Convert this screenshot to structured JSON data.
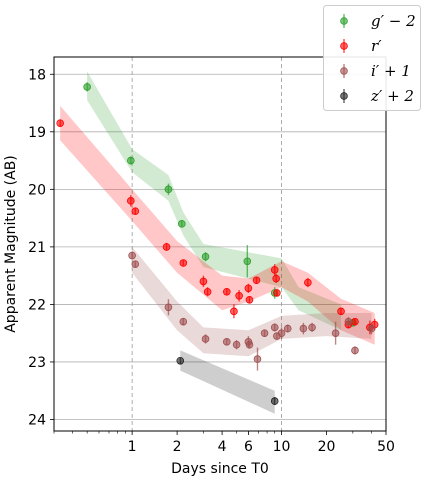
{
  "chart_data": {
    "type": "scatter",
    "title": "",
    "xlabel": "Days since T0",
    "ylabel": "Apparent Magnitude (AB)",
    "xscale": "log",
    "xlim": [
      0.3,
      50
    ],
    "ylim": [
      24.2,
      17.7
    ],
    "y_inverted": true,
    "x_ticks": [
      1,
      2,
      4,
      6,
      10,
      20,
      50
    ],
    "x_tick_labels": [
      "1",
      "2",
      "4",
      "6",
      "10",
      "20",
      "50"
    ],
    "y_ticks": [
      18,
      19,
      20,
      21,
      22,
      23,
      24
    ],
    "y_tick_labels": [
      "18",
      "19",
      "20",
      "21",
      "22",
      "23",
      "24"
    ],
    "vlines": [
      1,
      10
    ],
    "grid": "horizontal",
    "legend_position": "top-right, outside",
    "series": [
      {
        "name": "g′ − 2",
        "color": "#2ca02c",
        "points": [
          {
            "x": 0.5,
            "y": 18.22,
            "err": 0.08
          },
          {
            "x": 0.98,
            "y": 19.5,
            "err": 0.07
          },
          {
            "x": 1.75,
            "y": 20.0,
            "err": 0.1
          },
          {
            "x": 2.15,
            "y": 20.6,
            "err": 0.05
          },
          {
            "x": 3.1,
            "y": 21.17,
            "err": 0.08
          },
          {
            "x": 5.9,
            "y": 21.25,
            "err": 0.28
          },
          {
            "x": 9.0,
            "y": 21.8,
            "err": 0.1
          },
          {
            "x": 30.0,
            "y": 22.32,
            "err": 0.06
          }
        ],
        "band": [
          {
            "x": 0.5,
            "lo": 17.95,
            "hi": 18.45
          },
          {
            "x": 1.0,
            "lo": 19.3,
            "hi": 19.7
          },
          {
            "x": 1.75,
            "lo": 19.75,
            "hi": 20.2
          },
          {
            "x": 2.2,
            "lo": 20.4,
            "hi": 20.8
          },
          {
            "x": 3.0,
            "lo": 20.95,
            "hi": 21.35
          },
          {
            "x": 10.0,
            "lo": 21.2,
            "hi": 21.7
          },
          {
            "x": 13.0,
            "lo": 21.7,
            "hi": 22.1
          },
          {
            "x": 25.0,
            "lo": 22.0,
            "hi": 22.45
          }
        ]
      },
      {
        "name": "r′",
        "color": "#ff0000",
        "points": [
          {
            "x": 0.33,
            "y": 18.85,
            "err": 0.05
          },
          {
            "x": 0.98,
            "y": 20.2,
            "err": 0.1
          },
          {
            "x": 1.05,
            "y": 20.38,
            "err": 0.05
          },
          {
            "x": 1.7,
            "y": 21.0,
            "err": 0.07
          },
          {
            "x": 2.2,
            "y": 21.28,
            "err": 0.05
          },
          {
            "x": 3.0,
            "y": 21.6,
            "err": 0.1
          },
          {
            "x": 3.2,
            "y": 21.78,
            "err": 0.08
          },
          {
            "x": 4.3,
            "y": 21.78,
            "err": 0.06
          },
          {
            "x": 4.8,
            "y": 22.12,
            "err": 0.12
          },
          {
            "x": 5.2,
            "y": 21.85,
            "err": 0.1
          },
          {
            "x": 6.0,
            "y": 21.72,
            "err": 0.08
          },
          {
            "x": 6.1,
            "y": 21.92,
            "err": 0.06
          },
          {
            "x": 6.8,
            "y": 21.58,
            "err": 0.06
          },
          {
            "x": 9.0,
            "y": 21.4,
            "err": 0.1
          },
          {
            "x": 9.2,
            "y": 21.55,
            "err": 0.08
          },
          {
            "x": 9.3,
            "y": 21.8,
            "err": 0.06
          },
          {
            "x": 15.0,
            "y": 21.62,
            "err": 0.08
          },
          {
            "x": 25.0,
            "y": 22.12,
            "err": 0.06
          },
          {
            "x": 28.0,
            "y": 22.35,
            "err": 0.07
          },
          {
            "x": 31.0,
            "y": 22.3,
            "err": 0.05
          },
          {
            "x": 39.0,
            "y": 22.4,
            "err": 0.12
          },
          {
            "x": 42.0,
            "y": 22.35,
            "err": 0.1
          }
        ],
        "band": [
          {
            "x": 0.33,
            "lo": 18.55,
            "hi": 19.15
          },
          {
            "x": 1.0,
            "lo": 20.0,
            "hi": 20.55
          },
          {
            "x": 2.0,
            "lo": 20.9,
            "hi": 21.45
          },
          {
            "x": 4.0,
            "lo": 21.5,
            "hi": 22.1
          },
          {
            "x": 6.0,
            "lo": 21.55,
            "hi": 21.95
          },
          {
            "x": 10.0,
            "lo": 21.25,
            "hi": 21.7
          },
          {
            "x": 15.0,
            "lo": 21.45,
            "hi": 21.95
          },
          {
            "x": 25.0,
            "lo": 21.9,
            "hi": 22.45
          },
          {
            "x": 42.0,
            "lo": 22.15,
            "hi": 22.7
          }
        ]
      },
      {
        "name": "i′ + 1",
        "color": "#a05050",
        "points": [
          {
            "x": 1.0,
            "y": 21.15,
            "err": 0.07
          },
          {
            "x": 1.05,
            "y": 21.3,
            "err": 0.05
          },
          {
            "x": 1.75,
            "y": 22.05,
            "err": 0.14
          },
          {
            "x": 2.2,
            "y": 22.3,
            "err": 0.06
          },
          {
            "x": 3.1,
            "y": 22.6,
            "err": 0.08
          },
          {
            "x": 4.3,
            "y": 22.65,
            "err": 0.06
          },
          {
            "x": 5.0,
            "y": 22.7,
            "err": 0.08
          },
          {
            "x": 6.0,
            "y": 22.65,
            "err": 0.1
          },
          {
            "x": 6.1,
            "y": 22.7,
            "err": 0.07
          },
          {
            "x": 6.9,
            "y": 22.95,
            "err": 0.2
          },
          {
            "x": 7.7,
            "y": 22.5,
            "err": 0.06
          },
          {
            "x": 9.0,
            "y": 22.4,
            "err": 0.07
          },
          {
            "x": 9.3,
            "y": 22.55,
            "err": 0.06
          },
          {
            "x": 10.0,
            "y": 22.5,
            "err": 0.1
          },
          {
            "x": 11.0,
            "y": 22.42,
            "err": 0.07
          },
          {
            "x": 14.0,
            "y": 22.42,
            "err": 0.1
          },
          {
            "x": 16.0,
            "y": 22.4,
            "err": 0.08
          },
          {
            "x": 23.0,
            "y": 22.5,
            "err": 0.2
          },
          {
            "x": 28.0,
            "y": 22.3,
            "err": 0.08
          },
          {
            "x": 31.0,
            "y": 22.8,
            "err": 0.07
          },
          {
            "x": 40.0,
            "y": 22.42,
            "err": 0.1
          }
        ],
        "band": [
          {
            "x": 1.0,
            "lo": 21.0,
            "hi": 21.45
          },
          {
            "x": 2.0,
            "lo": 21.95,
            "hi": 22.45
          },
          {
            "x": 3.0,
            "lo": 22.4,
            "hi": 22.85
          },
          {
            "x": 6.0,
            "lo": 22.45,
            "hi": 22.9
          },
          {
            "x": 10.0,
            "lo": 22.2,
            "hi": 22.6
          },
          {
            "x": 20.0,
            "lo": 22.15,
            "hi": 22.55
          },
          {
            "x": 40.0,
            "lo": 22.15,
            "hi": 22.6
          }
        ]
      },
      {
        "name": "z′ + 2",
        "color": "#222222",
        "points": [
          {
            "x": 2.1,
            "y": 22.98,
            "err": 0.05
          },
          {
            "x": 9.0,
            "y": 23.68,
            "err": 0.07
          }
        ],
        "band": [
          {
            "x": 2.1,
            "lo": 22.8,
            "hi": 23.15
          },
          {
            "x": 9.0,
            "lo": 23.5,
            "hi": 23.9
          }
        ]
      }
    ]
  }
}
